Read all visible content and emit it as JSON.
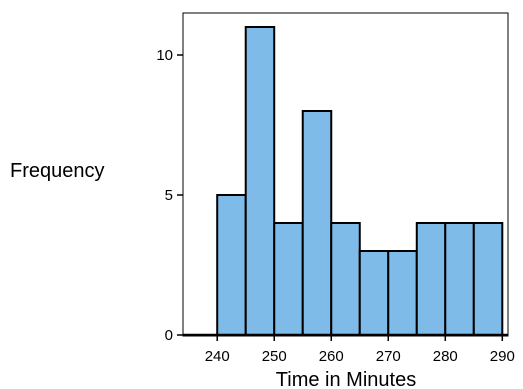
{
  "chart_data": {
    "type": "bar",
    "title": "",
    "xlabel": "Time in Minutes",
    "ylabel": "Frequency",
    "bins": [
      {
        "start": 240,
        "end": 245,
        "value": 5
      },
      {
        "start": 245,
        "end": 250,
        "value": 11
      },
      {
        "start": 250,
        "end": 255,
        "value": 4
      },
      {
        "start": 255,
        "end": 260,
        "value": 8
      },
      {
        "start": 260,
        "end": 265,
        "value": 4
      },
      {
        "start": 265,
        "end": 270,
        "value": 3
      },
      {
        "start": 270,
        "end": 275,
        "value": 3
      },
      {
        "start": 275,
        "end": 280,
        "value": 4
      },
      {
        "start": 280,
        "end": 285,
        "value": 4
      },
      {
        "start": 285,
        "end": 290,
        "value": 4
      }
    ],
    "xticks": [
      "240",
      "250",
      "260",
      "270",
      "280",
      "290"
    ],
    "yticks": [
      "0",
      "5",
      "10"
    ],
    "xlim": [
      234,
      291
    ],
    "ylim": [
      0,
      11.5
    ],
    "grid": false,
    "legend": "none",
    "colors": {
      "bar_fill": "#7fbbe8",
      "bar_stroke": "#000000",
      "axis": "#000000"
    }
  }
}
